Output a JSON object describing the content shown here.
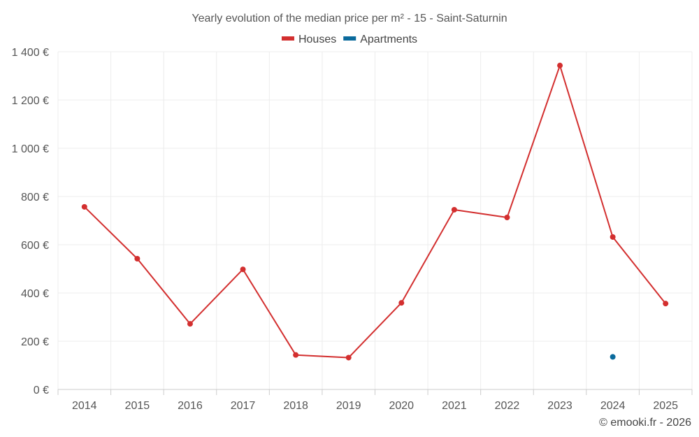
{
  "chart_data": {
    "type": "line",
    "title": "Yearly evolution of the median price per m² - 15 - Saint-Saturnin",
    "xlabel": "",
    "ylabel": "",
    "categories": [
      "2014",
      "2015",
      "2016",
      "2017",
      "2018",
      "2019",
      "2020",
      "2021",
      "2022",
      "2023",
      "2024",
      "2025"
    ],
    "ylim": [
      0,
      1400
    ],
    "yticks": [
      0,
      200,
      400,
      600,
      800,
      1000,
      1200,
      1400
    ],
    "ytick_labels": [
      "0 €",
      "200 €",
      "400 €",
      "600 €",
      "800 €",
      "1 000 €",
      "1 200 €",
      "1 400 €"
    ],
    "grid": true,
    "legend_position": "top-center",
    "series": [
      {
        "name": "Houses",
        "color": "#d32f2f",
        "values": [
          757,
          542,
          272,
          498,
          143,
          132,
          359,
          745,
          713,
          1343,
          632,
          356
        ]
      },
      {
        "name": "Apartments",
        "color": "#0a6a9c",
        "values": [
          null,
          null,
          null,
          null,
          null,
          null,
          null,
          null,
          null,
          null,
          135,
          null
        ]
      }
    ]
  },
  "credit": "© emooki.fr - 2026"
}
